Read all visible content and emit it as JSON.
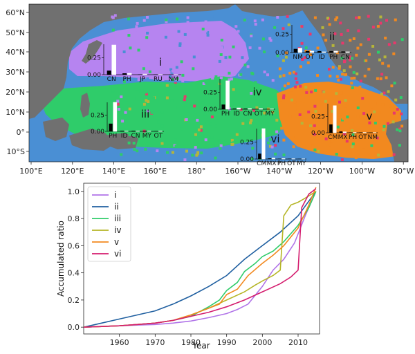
{
  "chart_data": [
    {
      "type": "map",
      "colors": {
        "ocean": "#4a8fd4",
        "land": "#707070",
        "region_i": "#b684f0",
        "region_iii": "#2fcc6a",
        "region_v": "#f2891f",
        "scatter_red": "#e8386c",
        "scatter_olive": "#b5b53a"
      },
      "lon_labels": [
        "100°E",
        "120°E",
        "140°E",
        "160°E",
        "180°",
        "160°W",
        "140°W",
        "120°W",
        "100°W",
        "80°W"
      ],
      "lat_labels": [
        "60°N",
        "50°N",
        "40°N",
        "30°N",
        "20°N",
        "10°N",
        "0°",
        "10°S"
      ],
      "region_labels": [
        "i",
        "ii",
        "iii",
        "iv",
        "v",
        "vi"
      ],
      "insets": [
        {
          "region": "i",
          "categories": [
            "CN",
            "PH",
            "JP",
            "RU",
            "NM"
          ],
          "black": [
            0.06,
            0.02,
            0.005,
            0.004,
            0.003
          ],
          "white": [
            0.44,
            0.02,
            0.01,
            0.003,
            0.002
          ],
          "ymax": 0.45,
          "yticks": [
            0.0,
            0.25
          ]
        },
        {
          "region": "ii",
          "categories": [
            "NM",
            "OT",
            "ID",
            "PH",
            "CN"
          ],
          "black": [
            0.05,
            0.02,
            0.02,
            0.02,
            0.015
          ],
          "white": [
            0.06,
            0.02,
            0.01,
            0.02,
            0.01
          ],
          "ymax": 0.38,
          "yticks": [
            0.0,
            0.25
          ]
        },
        {
          "region": "iii",
          "categories": [
            "PH",
            "ID",
            "CN",
            "MY",
            "OT"
          ],
          "black": [
            0.12,
            0.01,
            0.01,
            0.01,
            0.005
          ],
          "white": [
            0.45,
            0.005,
            0.005,
            0.005,
            0.005
          ],
          "ymax": 0.45,
          "yticks": [
            0.0,
            0.25
          ]
        },
        {
          "region": "iv",
          "categories": [
            "PH",
            "ID",
            "CN",
            "OT",
            "MY"
          ],
          "black": [
            0.07,
            0.01,
            0.01,
            0.005,
            0.005
          ],
          "white": [
            0.42,
            0.02,
            0.01,
            0.01,
            0.005
          ],
          "ymax": 0.45,
          "yticks": [
            0.0,
            0.25
          ]
        },
        {
          "region": "v",
          "categories": [
            "CM",
            "MX",
            "PH",
            "OT",
            "NM"
          ],
          "black": [
            0.13,
            0.02,
            0.005,
            0.005,
            0.003
          ],
          "white": [
            0.42,
            0.015,
            0.005,
            0.005,
            0.003
          ],
          "ymax": 0.45,
          "yticks": [
            0.0,
            0.25
          ]
        },
        {
          "region": "vi",
          "categories": [
            "CM",
            "MX",
            "PH",
            "OT",
            "MY"
          ],
          "black": [
            0.08,
            0.01,
            0.005,
            0.005,
            0.003
          ],
          "white": [
            0.45,
            0.015,
            0.008,
            0.005,
            0.003
          ],
          "ymax": 0.45,
          "yticks": [
            0.0,
            0.25
          ]
        }
      ]
    },
    {
      "type": "line",
      "xlabel": "Year",
      "ylabel": "Accumulated ratio",
      "xlim": [
        1950,
        2016
      ],
      "ylim": [
        -0.05,
        1.06
      ],
      "xticks": [
        1960,
        1970,
        1980,
        1990,
        2000,
        2010
      ],
      "yticks": [
        "0.0",
        "0.2",
        "0.4",
        "0.6",
        "0.8",
        "1.0"
      ],
      "legend_position": "upper-left",
      "series": [
        {
          "name": "i",
          "color": "#b073e8",
          "x": [
            1950,
            1955,
            1960,
            1965,
            1970,
            1975,
            1980,
            1985,
            1990,
            1993,
            1996,
            2000,
            2003,
            2006,
            2009,
            2012,
            2015
          ],
          "y": [
            0.0,
            0.005,
            0.01,
            0.015,
            0.02,
            0.03,
            0.045,
            0.07,
            0.1,
            0.13,
            0.17,
            0.3,
            0.42,
            0.5,
            0.62,
            0.82,
            1.0
          ]
        },
        {
          "name": "ii",
          "color": "#1f5fa0",
          "x": [
            1950,
            1955,
            1960,
            1965,
            1970,
            1975,
            1980,
            1985,
            1990,
            1995,
            2000,
            2005,
            2010,
            2015
          ],
          "y": [
            0.0,
            0.03,
            0.06,
            0.09,
            0.12,
            0.17,
            0.23,
            0.3,
            0.38,
            0.5,
            0.6,
            0.7,
            0.82,
            1.0
          ]
        },
        {
          "name": "iii",
          "color": "#2fcc6a",
          "x": [
            1950,
            1955,
            1960,
            1965,
            1970,
            1975,
            1980,
            1985,
            1988,
            1990,
            1993,
            1995,
            1998,
            2000,
            2003,
            2006,
            2010,
            2013,
            2015
          ],
          "y": [
            0.0,
            0.005,
            0.01,
            0.02,
            0.03,
            0.05,
            0.08,
            0.15,
            0.2,
            0.27,
            0.33,
            0.41,
            0.47,
            0.52,
            0.56,
            0.63,
            0.75,
            0.88,
            1.0
          ]
        },
        {
          "name": "iv",
          "color": "#b5b525",
          "x": [
            1950,
            1955,
            1960,
            1965,
            1970,
            1975,
            1980,
            1985,
            1990,
            1995,
            1998,
            2000,
            2003,
            2005,
            2006,
            2008,
            2010,
            2012,
            2015
          ],
          "y": [
            0.0,
            0.005,
            0.01,
            0.02,
            0.03,
            0.05,
            0.09,
            0.14,
            0.2,
            0.26,
            0.31,
            0.34,
            0.38,
            0.42,
            0.82,
            0.9,
            0.92,
            0.95,
            1.0
          ]
        },
        {
          "name": "v",
          "color": "#f2891f",
          "x": [
            1950,
            1955,
            1960,
            1965,
            1970,
            1975,
            1980,
            1983,
            1985,
            1988,
            1990,
            1993,
            1996,
            2000,
            2003,
            2006,
            2010,
            2013,
            2015
          ],
          "y": [
            0.0,
            0.005,
            0.01,
            0.02,
            0.03,
            0.05,
            0.09,
            0.12,
            0.14,
            0.17,
            0.24,
            0.28,
            0.38,
            0.47,
            0.53,
            0.6,
            0.73,
            0.9,
            1.03
          ]
        },
        {
          "name": "vi",
          "color": "#d41c6e",
          "x": [
            1950,
            1955,
            1960,
            1965,
            1970,
            1975,
            1980,
            1985,
            1990,
            1995,
            2000,
            2005,
            2008,
            2010,
            2011,
            2013,
            2015
          ],
          "y": [
            0.0,
            0.005,
            0.01,
            0.02,
            0.03,
            0.05,
            0.08,
            0.11,
            0.15,
            0.2,
            0.26,
            0.32,
            0.37,
            0.42,
            0.88,
            0.98,
            1.02
          ]
        }
      ]
    }
  ]
}
